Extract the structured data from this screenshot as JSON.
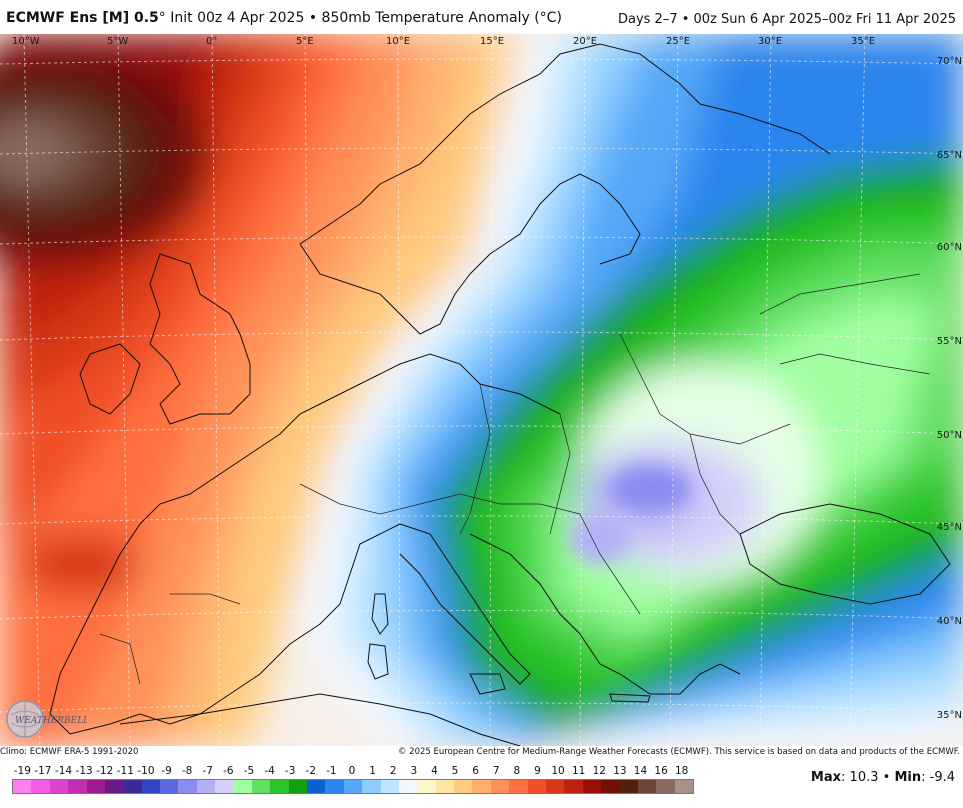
{
  "header": {
    "model": "ECMWF Ens [M] 0.5",
    "degree_symbol": "°",
    "init": "Init 00z 4 Apr 2025",
    "bullet": "•",
    "product": "850mb Temperature Anomaly (°C)",
    "valid": "Days 2–7 • 00z Sun 6 Apr 2025–00z Fri 11 Apr 2025"
  },
  "map": {
    "lon_labels": [
      "10°W",
      "5°W",
      "0°",
      "5°E",
      "10°E",
      "15°E",
      "20°E",
      "25°E",
      "30°E",
      "35°E"
    ],
    "lat_labels": [
      "70°N",
      "65°N",
      "60°N",
      "55°N",
      "50°N",
      "45°N",
      "40°N",
      "35°N"
    ],
    "logo_text": "WEATHERBELL"
  },
  "footer": {
    "climo": "Climo: ECMWF ERA-5 1991-2020",
    "copyright": "© 2025 European Centre for Medium-Range Weather Forecasts (ECMWF). This service is based on data and products of the ECMWF."
  },
  "colorbar": {
    "labels": [
      "-19",
      "-17",
      "-14",
      "-13",
      "-12",
      "-11",
      "-10",
      "-9",
      "-8",
      "-7",
      "-6",
      "-5",
      "-4",
      "-3",
      "-2",
      "-1",
      "0",
      "1",
      "2",
      "3",
      "4",
      "5",
      "6",
      "7",
      "8",
      "9",
      "10",
      "11",
      "12",
      "13",
      "14",
      "16",
      "18"
    ],
    "colors": [
      "#ff7ff0",
      "#f25fe0",
      "#dd44cc",
      "#c030b0",
      "#a01a90",
      "#6a1a86",
      "#3a2a9a",
      "#3545c8",
      "#5c68e0",
      "#8a8cf0",
      "#b4b0f6",
      "#d4d0fa",
      "#a0ffa0",
      "#60e060",
      "#2cc42c",
      "#12a012",
      "#0c60d0",
      "#2a85ee",
      "#55a8f8",
      "#8ccdff",
      "#bfe6ff",
      "#f3f8ff",
      "#fff8c8",
      "#ffe6a0",
      "#ffcc80",
      "#ffb070",
      "#ff9058",
      "#ff7040",
      "#f05028",
      "#d83818",
      "#c02010",
      "#9a1008",
      "#701008",
      "#542010",
      "#6e4538",
      "#8a6a60",
      "#a99088"
    ]
  },
  "stats": {
    "max_label": "Max",
    "max_value": "10.3",
    "min_label": "Min",
    "min_value": "-9.4",
    "sep": "•"
  },
  "palette": {
    "ocean_base": "#f2d9b0",
    "warm_core": "#3a0606",
    "cool_core": "#8a86ef"
  }
}
